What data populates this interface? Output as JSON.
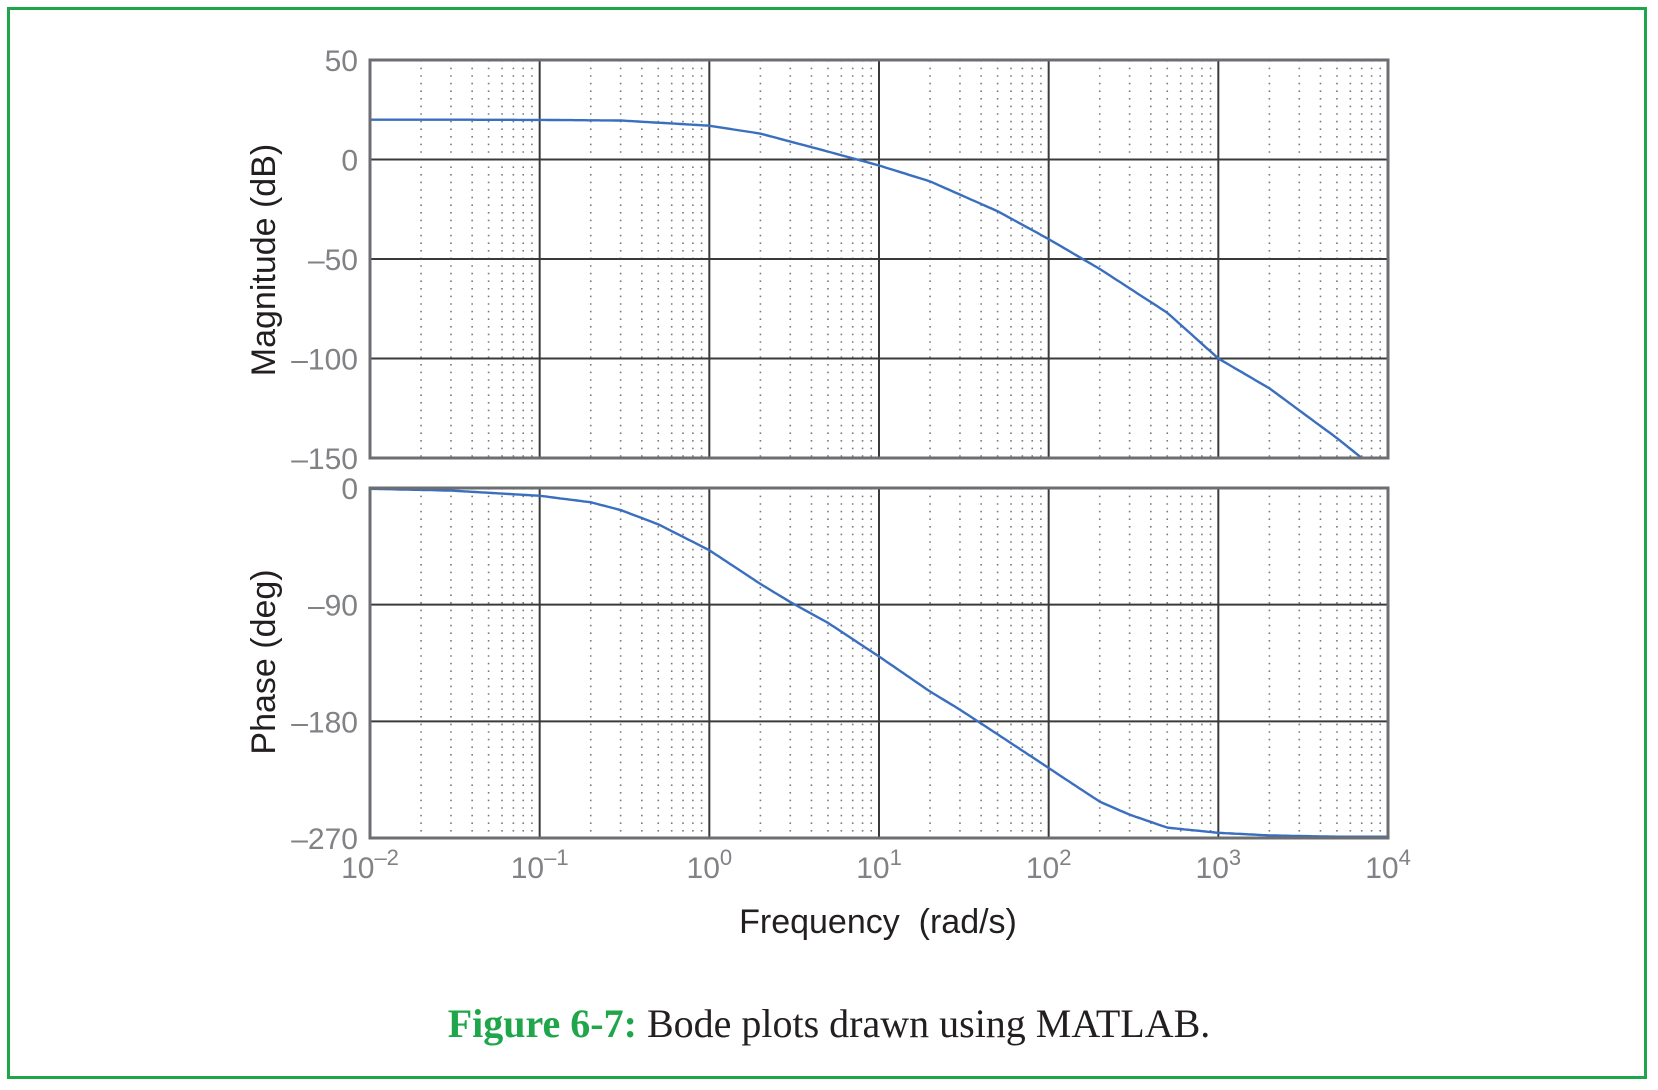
{
  "caption": {
    "label": "Figure 6-7:",
    "text": " Bode plots drawn using MATLAB."
  },
  "colors": {
    "frame": "#1fa64a",
    "curve": "#3a6fbf",
    "grid_major": "#3a3a3a",
    "grid_minor": "#7a7a7a",
    "tick_text": "#808285"
  },
  "chart_data": [
    {
      "type": "line",
      "panel": "magnitude",
      "title": "",
      "xlabel": "",
      "ylabel": "Magnitude (dB)",
      "xscale": "log",
      "xlim": [
        0.01,
        10000
      ],
      "ylim": [
        -150,
        50
      ],
      "yticks": [
        50,
        0,
        -50,
        -100,
        -150
      ],
      "ytick_labels": [
        "50",
        "0",
        "–50",
        "–100",
        "–150"
      ],
      "grid": true,
      "series": [
        {
          "x": [
            0.01,
            0.03,
            0.1,
            0.3,
            1,
            2,
            5,
            10,
            20,
            50,
            100,
            200,
            500,
            1000,
            2000,
            5000,
            7000
          ],
          "y": [
            20,
            20,
            19.9,
            19.6,
            17,
            13,
            4,
            -3,
            -11,
            -26,
            -40,
            -55,
            -77,
            -100,
            -115,
            -140,
            -150
          ]
        }
      ]
    },
    {
      "type": "line",
      "panel": "phase",
      "title": "",
      "xlabel": "Frequency  (rad/s)",
      "ylabel": "Phase (deg)",
      "xscale": "log",
      "xlim": [
        0.01,
        10000
      ],
      "ylim": [
        -270,
        0
      ],
      "yticks": [
        0,
        -90,
        -180,
        -270
      ],
      "ytick_labels": [
        "0",
        "–90",
        "–180",
        "–270"
      ],
      "xticks": [
        0.01,
        0.1,
        1,
        10,
        100,
        1000,
        10000
      ],
      "xtick_labels": [
        {
          "base": "10",
          "exp": "–2"
        },
        {
          "base": "10",
          "exp": "–1"
        },
        {
          "base": "10",
          "exp": "0"
        },
        {
          "base": "10",
          "exp": "1"
        },
        {
          "base": "10",
          "exp": "2"
        },
        {
          "base": "10",
          "exp": "3"
        },
        {
          "base": "10",
          "exp": "4"
        }
      ],
      "grid": true,
      "series": [
        {
          "x": [
            0.01,
            0.03,
            0.1,
            0.2,
            0.3,
            0.5,
            1,
            2,
            3,
            5,
            10,
            20,
            30,
            50,
            100,
            200,
            300,
            500,
            1000,
            2000,
            5000,
            10000
          ],
          "y": [
            -0.6,
            -2,
            -6,
            -11,
            -17,
            -28,
            -48,
            -74,
            -88,
            -104,
            -130,
            -157,
            -171,
            -190,
            -216,
            -242,
            -252,
            -262,
            -266,
            -268,
            -269,
            -269
          ]
        }
      ]
    }
  ]
}
